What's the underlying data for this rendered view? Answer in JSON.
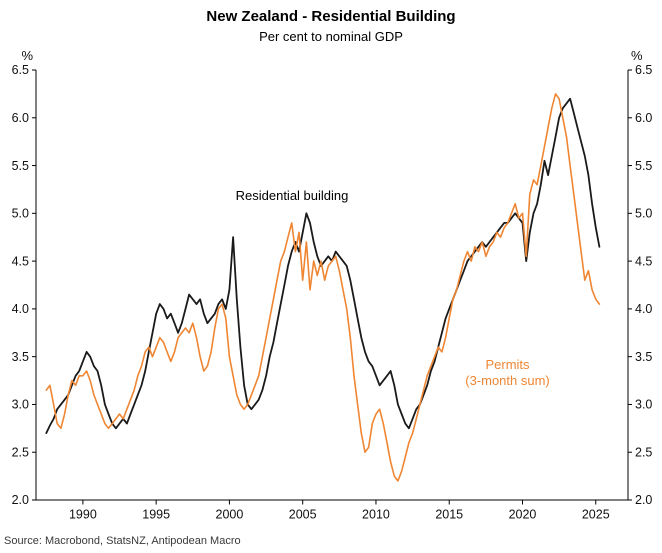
{
  "chart_data": {
    "type": "line",
    "title": "New Zealand - Residential Building",
    "subtitle": "Per cent to nominal GDP",
    "unit_label_left": "%",
    "unit_label_right": "%",
    "source": "Source: Macrobond, StatsNZ, Antipodean Macro",
    "annotation_residential": "Residential building",
    "annotation_permits_line1": "Permits",
    "annotation_permits_line2": "(3-month sum)",
    "x_start": 1987.5,
    "x_step": 0.25,
    "xlim": [
      1986.8,
      2027.2
    ],
    "ylim": [
      2.0,
      6.5
    ],
    "x_ticks": [
      1990,
      1995,
      2000,
      2005,
      2010,
      2015,
      2020,
      2025
    ],
    "y_ticks": [
      2.0,
      2.5,
      3.0,
      3.5,
      4.0,
      4.5,
      5.0,
      5.5,
      6.0,
      6.5
    ],
    "grid": false,
    "legend_position": "inline-annotations",
    "colors": {
      "residential": "#1a1a1a",
      "permits": "#EF8633",
      "axis": "#000000"
    },
    "series": [
      {
        "name": "Residential building",
        "color": "#1a1a1a",
        "width": 1.8,
        "values": [
          2.7,
          2.78,
          2.85,
          2.95,
          3.0,
          3.05,
          3.1,
          3.2,
          3.3,
          3.35,
          3.45,
          3.55,
          3.5,
          3.4,
          3.35,
          3.2,
          3.0,
          2.9,
          2.8,
          2.75,
          2.8,
          2.85,
          2.8,
          2.9,
          3.0,
          3.1,
          3.2,
          3.35,
          3.55,
          3.75,
          3.95,
          4.05,
          4.0,
          3.9,
          3.95,
          3.85,
          3.75,
          3.85,
          4.0,
          4.15,
          4.1,
          4.05,
          4.1,
          3.95,
          3.85,
          3.9,
          3.95,
          4.05,
          4.1,
          4.0,
          4.2,
          4.75,
          4.1,
          3.6,
          3.2,
          3.0,
          2.95,
          3.0,
          3.05,
          3.15,
          3.3,
          3.5,
          3.65,
          3.85,
          4.05,
          4.25,
          4.45,
          4.6,
          4.7,
          4.6,
          4.8,
          5.0,
          4.9,
          4.7,
          4.55,
          4.45,
          4.5,
          4.55,
          4.5,
          4.6,
          4.55,
          4.5,
          4.45,
          4.3,
          4.1,
          3.9,
          3.7,
          3.55,
          3.45,
          3.4,
          3.3,
          3.2,
          3.25,
          3.3,
          3.35,
          3.2,
          3.0,
          2.9,
          2.8,
          2.75,
          2.85,
          2.95,
          3.0,
          3.1,
          3.2,
          3.35,
          3.45,
          3.6,
          3.75,
          3.9,
          4.0,
          4.1,
          4.2,
          4.3,
          4.4,
          4.5,
          4.55,
          4.6,
          4.65,
          4.7,
          4.65,
          4.7,
          4.75,
          4.8,
          4.85,
          4.9,
          4.9,
          4.95,
          5.0,
          4.95,
          4.9,
          4.5,
          4.8,
          5.0,
          5.1,
          5.3,
          5.55,
          5.4,
          5.6,
          5.8,
          6.0,
          6.1,
          6.15,
          6.2,
          6.05,
          5.9,
          5.75,
          5.6,
          5.4,
          5.1,
          4.85,
          4.65
        ]
      },
      {
        "name": "Permits (3-month sum)",
        "color": "#EF8633",
        "width": 1.6,
        "values": [
          3.15,
          3.2,
          3.0,
          2.8,
          2.75,
          2.9,
          3.1,
          3.25,
          3.2,
          3.3,
          3.3,
          3.35,
          3.25,
          3.1,
          3.0,
          2.9,
          2.8,
          2.75,
          2.8,
          2.85,
          2.9,
          2.85,
          2.95,
          3.05,
          3.15,
          3.3,
          3.4,
          3.55,
          3.6,
          3.5,
          3.6,
          3.7,
          3.65,
          3.55,
          3.45,
          3.55,
          3.7,
          3.75,
          3.8,
          3.75,
          3.85,
          3.7,
          3.5,
          3.35,
          3.4,
          3.55,
          3.8,
          4.0,
          4.05,
          3.9,
          3.5,
          3.3,
          3.1,
          3.0,
          2.95,
          3.0,
          3.1,
          3.2,
          3.3,
          3.5,
          3.7,
          3.9,
          4.1,
          4.3,
          4.5,
          4.6,
          4.75,
          4.9,
          4.6,
          4.8,
          4.3,
          4.7,
          4.2,
          4.5,
          4.35,
          4.5,
          4.3,
          4.45,
          4.5,
          4.55,
          4.4,
          4.2,
          4.0,
          3.7,
          3.3,
          3.0,
          2.7,
          2.5,
          2.55,
          2.8,
          2.9,
          2.95,
          2.8,
          2.6,
          2.4,
          2.25,
          2.2,
          2.3,
          2.45,
          2.6,
          2.7,
          2.85,
          3.0,
          3.15,
          3.3,
          3.4,
          3.5,
          3.6,
          3.55,
          3.7,
          3.9,
          4.1,
          4.2,
          4.35,
          4.5,
          4.6,
          4.5,
          4.65,
          4.6,
          4.7,
          4.55,
          4.65,
          4.7,
          4.8,
          4.75,
          4.85,
          4.9,
          5.0,
          5.1,
          4.95,
          5.0,
          4.55,
          5.2,
          5.35,
          5.3,
          5.5,
          5.7,
          5.9,
          6.1,
          6.25,
          6.2,
          6.0,
          5.8,
          5.5,
          5.2,
          4.9,
          4.6,
          4.3,
          4.4,
          4.2,
          4.1,
          4.05
        ]
      }
    ]
  }
}
